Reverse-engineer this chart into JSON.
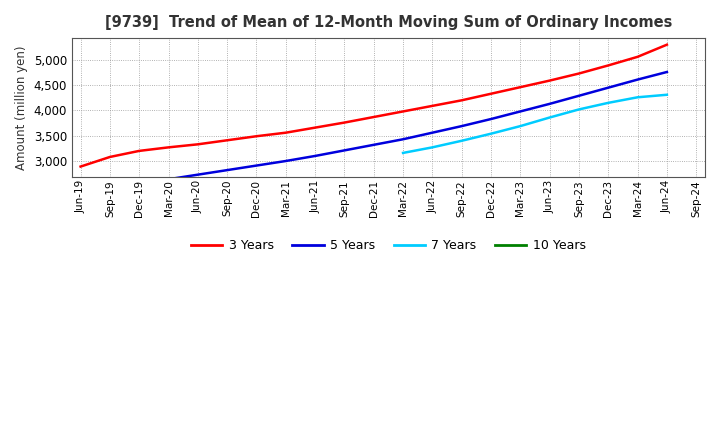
{
  "title": "[9739]  Trend of Mean of 12-Month Moving Sum of Ordinary Incomes",
  "ylabel": "Amount (million yen)",
  "background_color": "#ffffff",
  "plot_bg_color": "#ffffff",
  "grid_color": "#999999",
  "ylim": [
    2680,
    5430
  ],
  "yticks": [
    3000,
    3500,
    4000,
    4500,
    5000
  ],
  "x_labels": [
    "Jun-19",
    "Sep-19",
    "Dec-19",
    "Mar-20",
    "Jun-20",
    "Sep-20",
    "Dec-20",
    "Mar-21",
    "Jun-21",
    "Sep-21",
    "Dec-21",
    "Mar-22",
    "Jun-22",
    "Sep-22",
    "Dec-22",
    "Mar-23",
    "Jun-23",
    "Sep-23",
    "Dec-23",
    "Mar-24",
    "Jun-24",
    "Sep-24"
  ],
  "series_3yr": {
    "color": "#ff0000",
    "points": [
      [
        0,
        2890
      ],
      [
        1,
        3080
      ],
      [
        2,
        3200
      ],
      [
        3,
        3270
      ],
      [
        4,
        3330
      ],
      [
        5,
        3410
      ],
      [
        6,
        3490
      ],
      [
        7,
        3560
      ],
      [
        8,
        3660
      ],
      [
        9,
        3760
      ],
      [
        10,
        3870
      ],
      [
        11,
        3980
      ],
      [
        12,
        4090
      ],
      [
        13,
        4200
      ],
      [
        14,
        4330
      ],
      [
        15,
        4460
      ],
      [
        16,
        4590
      ],
      [
        17,
        4730
      ],
      [
        18,
        4890
      ],
      [
        19,
        5060
      ],
      [
        20,
        5300
      ]
    ]
  },
  "series_5yr": {
    "color": "#0000dd",
    "points": [
      [
        3,
        2640
      ],
      [
        4,
        2730
      ],
      [
        5,
        2820
      ],
      [
        6,
        2910
      ],
      [
        7,
        3000
      ],
      [
        8,
        3100
      ],
      [
        9,
        3210
      ],
      [
        10,
        3320
      ],
      [
        11,
        3430
      ],
      [
        12,
        3560
      ],
      [
        13,
        3690
      ],
      [
        14,
        3830
      ],
      [
        15,
        3980
      ],
      [
        16,
        4130
      ],
      [
        17,
        4290
      ],
      [
        18,
        4450
      ],
      [
        19,
        4610
      ],
      [
        20,
        4760
      ]
    ]
  },
  "series_7yr": {
    "color": "#00ccff",
    "points": [
      [
        11,
        3160
      ],
      [
        12,
        3270
      ],
      [
        13,
        3400
      ],
      [
        14,
        3540
      ],
      [
        15,
        3690
      ],
      [
        16,
        3860
      ],
      [
        17,
        4020
      ],
      [
        18,
        4150
      ],
      [
        19,
        4260
      ],
      [
        20,
        4310
      ]
    ]
  },
  "legend_entries": [
    "3 Years",
    "5 Years",
    "7 Years",
    "10 Years"
  ],
  "legend_colors": [
    "#ff0000",
    "#0000dd",
    "#00ccff",
    "#008000"
  ],
  "title_color": "#333333"
}
